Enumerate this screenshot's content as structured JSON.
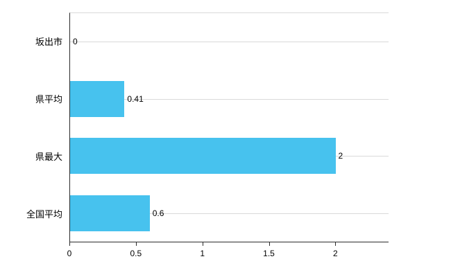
{
  "chart_data": {
    "type": "bar",
    "orientation": "horizontal",
    "title": "",
    "xlabel": "",
    "ylabel": "",
    "categories": [
      "坂出市",
      "県平均",
      "県最大",
      "全国平均"
    ],
    "values": [
      0,
      0.41,
      2,
      0.6
    ],
    "value_labels": [
      "0",
      "0.41",
      "2",
      "0.6"
    ],
    "x_ticks": [
      0,
      0.5,
      1,
      1.5,
      2
    ],
    "x_tick_labels": [
      "0",
      "0.5",
      "1",
      "1.5",
      "2"
    ],
    "xlim": [
      0,
      2.4
    ],
    "grid": true,
    "legend": "none",
    "bar_color": "#47c2ee",
    "grid_color": "#d9d9d9",
    "axis_color": "#2b2b2b"
  }
}
